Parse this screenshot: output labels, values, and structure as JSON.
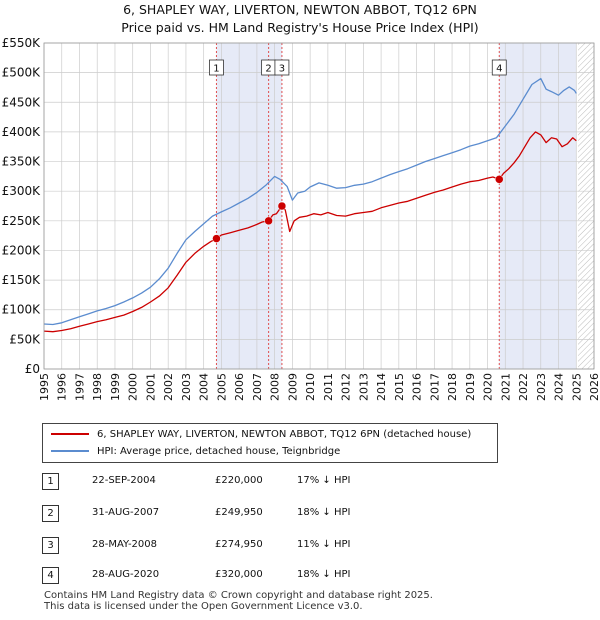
{
  "title": {
    "line1": "6, SHAPLEY WAY, LIVERTON, NEWTON ABBOT, TQ12 6PN",
    "line2": "Price paid vs. HM Land Registry's House Price Index (HPI)"
  },
  "legend": {
    "property": "6, SHAPLEY WAY, LIVERTON, NEWTON ABBOT, TQ12 6PN (detached house)",
    "hpi": "HPI: Average price, detached house, Teignbridge"
  },
  "sales": [
    {
      "num": "1",
      "date": "22-SEP-2004",
      "price": "£220,000",
      "hpi": "17% ↓ HPI"
    },
    {
      "num": "2",
      "date": "31-AUG-2007",
      "price": "£249,950",
      "hpi": "18% ↓ HPI"
    },
    {
      "num": "3",
      "date": "28-MAY-2008",
      "price": "£274,950",
      "hpi": "11% ↓ HPI"
    },
    {
      "num": "4",
      "date": "28-AUG-2020",
      "price": "£320,000",
      "hpi": "18% ↓ HPI"
    }
  ],
  "footer": {
    "line1": "Contains HM Land Registry data © Crown copyright and database right 2025.",
    "line2": "This data is licensed under the Open Government Licence v3.0."
  },
  "colors": {
    "property": "#cc0000",
    "hpi": "#5b8ccf",
    "shade": "#e6eaf7",
    "grid": "#cccccc",
    "marker_line": "#e05050"
  },
  "chart_data": {
    "type": "line",
    "title": "Price paid vs. HM Land Registry's House Price Index (HPI)",
    "xlabel": "",
    "ylabel": "",
    "xlim": [
      1995,
      2026
    ],
    "ylim": [
      0,
      550000
    ],
    "x_ticks": [
      1995,
      1996,
      1997,
      1998,
      1999,
      2000,
      2001,
      2002,
      2003,
      2004,
      2005,
      2006,
      2007,
      2008,
      2009,
      2010,
      2011,
      2012,
      2013,
      2014,
      2015,
      2016,
      2017,
      2018,
      2019,
      2020,
      2021,
      2022,
      2023,
      2024,
      2025,
      2026
    ],
    "y_ticks": [
      {
        "value": 0,
        "label": "£0"
      },
      {
        "value": 50000,
        "label": "£50K"
      },
      {
        "value": 100000,
        "label": "£100K"
      },
      {
        "value": 150000,
        "label": "£150K"
      },
      {
        "value": 200000,
        "label": "£200K"
      },
      {
        "value": 250000,
        "label": "£250K"
      },
      {
        "value": 300000,
        "label": "£300K"
      },
      {
        "value": 350000,
        "label": "£350K"
      },
      {
        "value": 400000,
        "label": "£400K"
      },
      {
        "value": 450000,
        "label": "£450K"
      },
      {
        "value": 500000,
        "label": "£500K"
      },
      {
        "value": 550000,
        "label": "£550K"
      }
    ],
    "grid": true,
    "shaded_ranges": [
      [
        2004.72,
        2008.41
      ],
      [
        2020.66,
        2025.0
      ]
    ],
    "future_hatch_from": 2025.1,
    "series": [
      {
        "name": "6, SHAPLEY WAY, LIVERTON, NEWTON ABBOT, TQ12 6PN (detached house)",
        "color": "#cc0000",
        "x": [
          1995.0,
          1995.5,
          1996.0,
          1996.5,
          1997.0,
          1997.5,
          1998.0,
          1998.5,
          1999.0,
          1999.5,
          2000.0,
          2000.5,
          2001.0,
          2001.5,
          2002.0,
          2002.5,
          2003.0,
          2003.5,
          2004.0,
          2004.4,
          2004.72,
          2005.0,
          2005.5,
          2006.0,
          2006.5,
          2007.0,
          2007.3,
          2007.66,
          2007.9,
          2008.1,
          2008.41,
          2008.6,
          2008.85,
          2009.1,
          2009.4,
          2009.8,
          2010.2,
          2010.6,
          2011.0,
          2011.5,
          2012.0,
          2012.5,
          2013.0,
          2013.5,
          2014.0,
          2014.5,
          2015.0,
          2015.5,
          2016.0,
          2016.5,
          2017.0,
          2017.5,
          2018.0,
          2018.5,
          2019.0,
          2019.5,
          2020.0,
          2020.3,
          2020.66,
          2020.9,
          2021.2,
          2021.5,
          2021.8,
          2022.1,
          2022.4,
          2022.7,
          2023.0,
          2023.3,
          2023.6,
          2023.9,
          2024.2,
          2024.5,
          2024.8,
          2025.0
        ],
        "values": [
          64000,
          63000,
          65000,
          68000,
          72000,
          76000,
          80000,
          83000,
          87000,
          91000,
          97000,
          104000,
          113000,
          123000,
          137000,
          158000,
          180000,
          195000,
          207000,
          215000,
          220000,
          226000,
          230000,
          234000,
          238000,
          244000,
          248000,
          249950,
          260000,
          262000,
          274950,
          268000,
          232000,
          250000,
          256000,
          258000,
          262000,
          260000,
          264000,
          259000,
          258000,
          262000,
          264000,
          266000,
          272000,
          276000,
          280000,
          283000,
          288000,
          293000,
          298000,
          302000,
          307000,
          312000,
          316000,
          318000,
          322000,
          324000,
          320000,
          330000,
          338000,
          348000,
          360000,
          375000,
          390000,
          400000,
          395000,
          382000,
          390000,
          388000,
          375000,
          380000,
          390000,
          385000
        ]
      },
      {
        "name": "HPI: Average price, detached house, Teignbridge",
        "color": "#5b8ccf",
        "x": [
          1995.0,
          1995.5,
          1996.0,
          1996.5,
          1997.0,
          1997.5,
          1998.0,
          1998.5,
          1999.0,
          1999.5,
          2000.0,
          2000.5,
          2001.0,
          2001.5,
          2002.0,
          2002.5,
          2003.0,
          2003.5,
          2004.0,
          2004.5,
          2005.0,
          2005.5,
          2006.0,
          2006.5,
          2007.0,
          2007.5,
          2008.0,
          2008.3,
          2008.7,
          2009.0,
          2009.3,
          2009.7,
          2010.0,
          2010.5,
          2011.0,
          2011.5,
          2012.0,
          2012.5,
          2013.0,
          2013.5,
          2014.0,
          2014.5,
          2015.0,
          2015.5,
          2016.0,
          2016.5,
          2017.0,
          2017.5,
          2018.0,
          2018.5,
          2019.0,
          2019.5,
          2020.0,
          2020.5,
          2021.0,
          2021.5,
          2022.0,
          2022.5,
          2023.0,
          2023.3,
          2023.6,
          2024.0,
          2024.3,
          2024.6,
          2024.9,
          2025.0
        ],
        "values": [
          76000,
          75000,
          78000,
          83000,
          88000,
          93000,
          98000,
          102000,
          107000,
          113000,
          120000,
          128000,
          138000,
          152000,
          170000,
          195000,
          218000,
          232000,
          245000,
          258000,
          265000,
          272000,
          280000,
          288000,
          298000,
          310000,
          325000,
          320000,
          308000,
          285000,
          297000,
          300000,
          307000,
          314000,
          310000,
          305000,
          306000,
          310000,
          312000,
          316000,
          322000,
          328000,
          333000,
          338000,
          344000,
          350000,
          355000,
          360000,
          365000,
          370000,
          376000,
          380000,
          385000,
          390000,
          410000,
          430000,
          455000,
          480000,
          490000,
          472000,
          468000,
          462000,
          470000,
          476000,
          470000,
          465000
        ]
      }
    ],
    "sale_markers": [
      {
        "label": "1",
        "x": 2004.72,
        "value": 220000
      },
      {
        "label": "2",
        "x": 2007.66,
        "value": 249950
      },
      {
        "label": "3",
        "x": 2008.41,
        "value": 274950
      },
      {
        "label": "4",
        "x": 2020.66,
        "value": 320000
      }
    ]
  }
}
